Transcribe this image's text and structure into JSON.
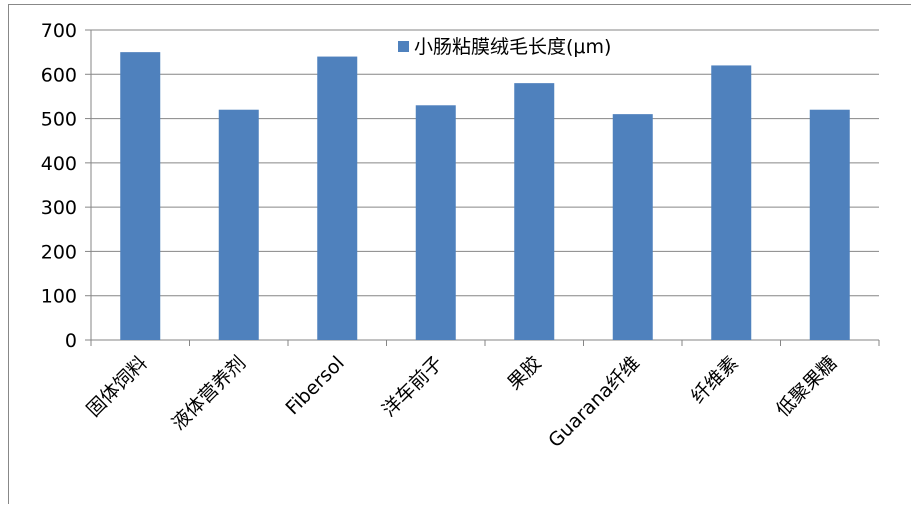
{
  "chart_data": {
    "type": "bar",
    "categories": [
      "固体饲料",
      "液体营养剂",
      "Fibersol",
      "洋车前子",
      "果胶",
      "Guarana纤维",
      "纤维素",
      "低聚果糖"
    ],
    "series": [
      {
        "name": "小肠粘膜绒毛长度(μm)",
        "values": [
          650,
          520,
          640,
          530,
          580,
          510,
          620,
          520
        ]
      }
    ],
    "ylim": [
      0,
      700
    ],
    "yticks": [
      0,
      100,
      200,
      300,
      400,
      500,
      600,
      700
    ],
    "grid": true,
    "legend": "top-center",
    "title": "",
    "xlabel": "",
    "ylabel": ""
  },
  "colors": {
    "bar": "#4f81bd",
    "grid": "#868686",
    "axis": "#868686",
    "text": "#000000"
  }
}
